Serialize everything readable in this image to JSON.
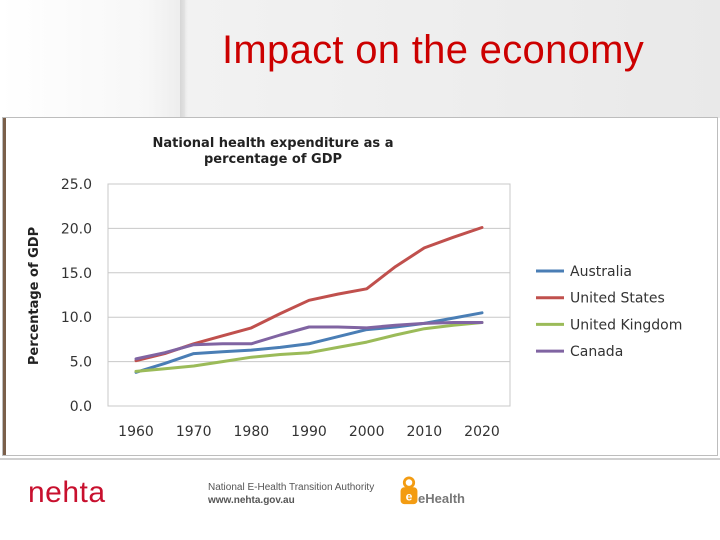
{
  "slide": {
    "title": "Impact on the economy"
  },
  "chart_data": {
    "type": "line",
    "title_lines": [
      "National health expenditure as a",
      "percentage of GDP"
    ],
    "xlabel": "",
    "ylabel": "Percentage of GDP",
    "x": [
      1960,
      1970,
      1980,
      1990,
      2000,
      2010,
      2020
    ],
    "x_tick_labels": [
      "1960",
      "1970",
      "1980",
      "1990",
      "2000",
      "2010",
      "2020"
    ],
    "y_ticks": [
      0.0,
      5.0,
      10.0,
      15.0,
      20.0,
      25.0
    ],
    "y_tick_labels": [
      "0.0",
      "5.0",
      "10.0",
      "15.0",
      "20.0",
      "25.0"
    ],
    "ylim": [
      0,
      25
    ],
    "grid": true,
    "legend_position": "right",
    "series": [
      {
        "name": "Australia",
        "color": "#4a7eb5",
        "x": [
          1960,
          1965,
          1970,
          1975,
          1980,
          1985,
          1990,
          1995,
          2000,
          2005,
          2010,
          2015,
          2020
        ],
        "values": [
          3.8,
          4.8,
          5.9,
          6.1,
          6.3,
          6.6,
          7.0,
          7.8,
          8.6,
          8.9,
          9.3,
          9.9,
          10.5
        ]
      },
      {
        "name": "United States",
        "color": "#c0504d",
        "x": [
          1960,
          1965,
          1970,
          1975,
          1980,
          1985,
          1990,
          1995,
          2000,
          2005,
          2010,
          2015,
          2020
        ],
        "values": [
          5.1,
          5.9,
          7.0,
          7.9,
          8.8,
          10.4,
          11.9,
          12.6,
          13.2,
          15.7,
          17.8,
          19.0,
          20.1
        ]
      },
      {
        "name": "United Kingdom",
        "color": "#9bbb59",
        "x": [
          1960,
          1965,
          1970,
          1975,
          1980,
          1985,
          1990,
          1995,
          2000,
          2005,
          2010,
          2015,
          2020
        ],
        "values": [
          3.9,
          4.2,
          4.5,
          5.0,
          5.5,
          5.8,
          6.0,
          6.6,
          7.2,
          8.0,
          8.7,
          9.1,
          9.4
        ]
      },
      {
        "name": "Canada",
        "color": "#8064a2",
        "x": [
          1960,
          1965,
          1970,
          1975,
          1980,
          1985,
          1990,
          1995,
          2000,
          2005,
          2010,
          2015,
          2020
        ],
        "values": [
          5.3,
          6.0,
          6.9,
          7.0,
          7.0,
          8.0,
          8.9,
          8.9,
          8.8,
          9.1,
          9.3,
          9.4,
          9.4
        ]
      }
    ]
  },
  "footer": {
    "logo": "nehta",
    "authority_name": "National E-Health Transition Authority",
    "authority_url": "www.nehta.gov.au",
    "ehealth_label": "eHealth"
  },
  "colors": {
    "title_red": "#cc0000",
    "logo_red": "#c8102e",
    "ehealth_orange": "#f39c12"
  }
}
